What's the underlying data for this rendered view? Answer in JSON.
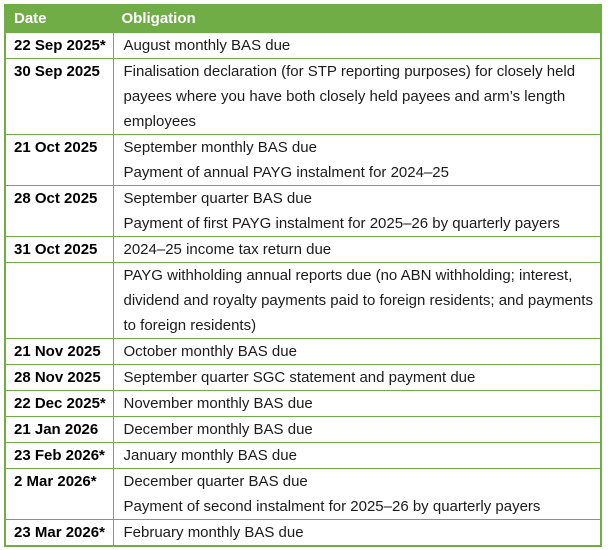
{
  "table": {
    "columns": [
      "Date",
      "Obligation"
    ],
    "colors": {
      "header_bg": "#70AD47",
      "header_text": "#FFFFFF",
      "border": "#70AD47",
      "body_text": "#1B1B1B"
    },
    "rows": [
      {
        "date": "22 Sep 2025*",
        "obligations": [
          "August monthly BAS due"
        ]
      },
      {
        "date": "30 Sep 2025",
        "obligations": [
          "Finalisation declaration (for STP reporting purposes) for closely held payees where you have both closely held payees and arm’s length employees"
        ]
      },
      {
        "date": "21 Oct 2025",
        "obligations": [
          "September monthly BAS due",
          "Payment of annual PAYG instalment for 2024–25"
        ]
      },
      {
        "date": "28 Oct 2025",
        "obligations": [
          "September quarter BAS due",
          "Payment of first PAYG instalment for 2025–26 by quarterly payers"
        ]
      },
      {
        "date": "31 Oct 2025",
        "obligations": [
          "2024–25 income tax return due"
        ]
      },
      {
        "date": "",
        "obligations": [
          "PAYG withholding annual reports due (no ABN withholding; interest, dividend and royalty payments paid to foreign residents; and payments to foreign residents)"
        ]
      },
      {
        "date": "21 Nov 2025",
        "obligations": [
          "October monthly BAS due"
        ]
      },
      {
        "date": "28 Nov 2025",
        "obligations": [
          "September quarter SGC statement and payment due"
        ]
      },
      {
        "date": "22 Dec 2025*",
        "obligations": [
          "November monthly BAS due"
        ]
      },
      {
        "date": "21 Jan 2026",
        "obligations": [
          "December monthly BAS due"
        ]
      },
      {
        "date": "23 Feb 2026*",
        "obligations": [
          "January monthly BAS due"
        ]
      },
      {
        "date": "2 Mar 2026*",
        "obligations": [
          "December quarter BAS due",
          "Payment of second instalment for 2025–26 by quarterly payers"
        ]
      },
      {
        "date": "23 Mar 2026*",
        "obligations": [
          "February monthly BAS due"
        ]
      }
    ]
  }
}
